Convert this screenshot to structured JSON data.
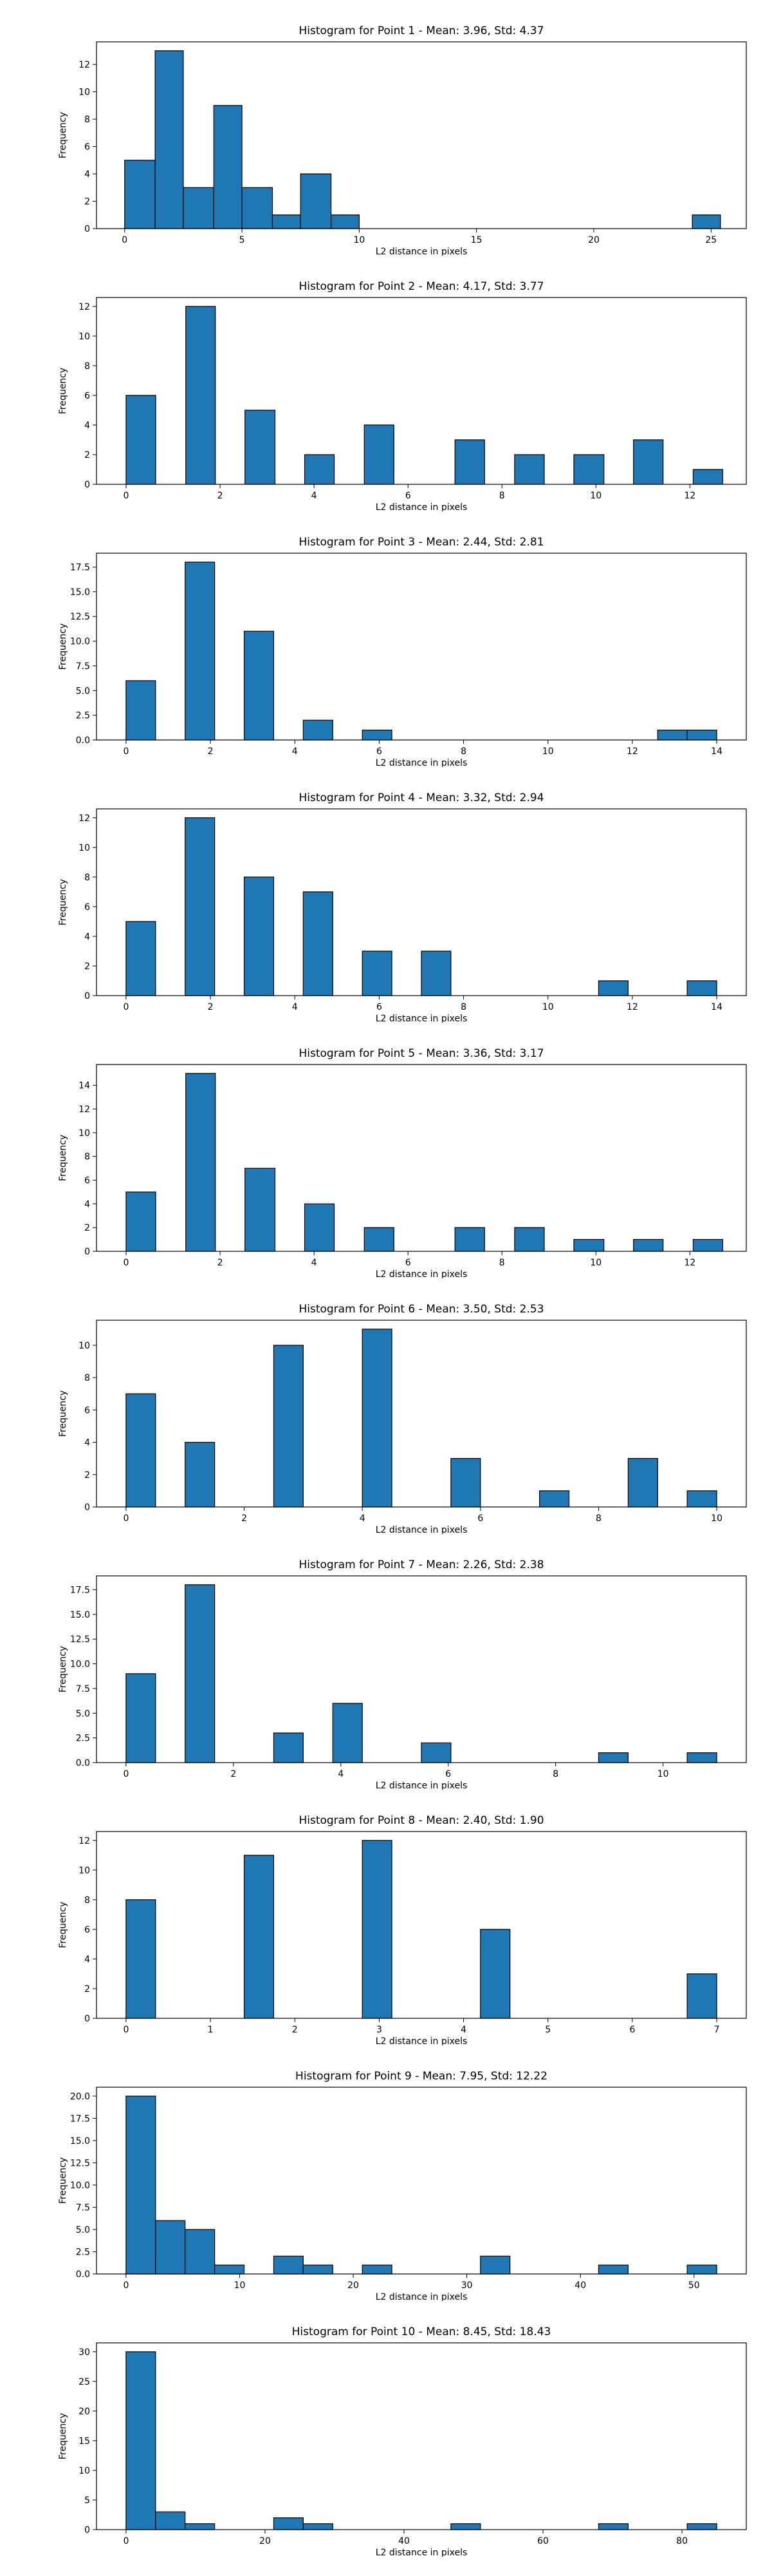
{
  "chart_data": [
    {
      "type": "bar",
      "title": "Histogram for Point 1 - Mean: 3.96, Std: 4.37",
      "xlabel": "L2 distance in pixels",
      "ylabel": "Frequency",
      "xlim": [
        -1.2,
        26.5
      ],
      "ylim": [
        0,
        13.65
      ],
      "xticks": [
        0,
        5,
        10,
        15,
        20,
        25
      ],
      "xtick_labels": [
        "0",
        "5",
        "10",
        "15",
        "20",
        "25"
      ],
      "yticks": [
        0,
        2,
        4,
        6,
        8,
        10,
        12
      ],
      "ytick_labels": [
        "0",
        "2",
        "4",
        "6",
        "8",
        "10",
        "12"
      ],
      "bins": [
        {
          "x0": 0,
          "x1": 1.3,
          "value": 5
        },
        {
          "x0": 1.3,
          "x1": 2.5,
          "value": 13
        },
        {
          "x0": 2.5,
          "x1": 3.8,
          "value": 3
        },
        {
          "x0": 3.8,
          "x1": 5.0,
          "value": 9
        },
        {
          "x0": 5.0,
          "x1": 6.3,
          "value": 3
        },
        {
          "x0": 6.3,
          "x1": 7.5,
          "value": 1
        },
        {
          "x0": 7.5,
          "x1": 8.8,
          "value": 4
        },
        {
          "x0": 8.8,
          "x1": 10.0,
          "value": 1
        },
        {
          "x0": 24.2,
          "x1": 25.4,
          "value": 1
        }
      ]
    },
    {
      "type": "bar",
      "title": "Histogram for Point 2 - Mean: 4.17, Std: 3.77",
      "xlabel": "L2 distance in pixels",
      "ylabel": "Frequency",
      "xlim": [
        -0.63,
        13.2
      ],
      "ylim": [
        0,
        12.6
      ],
      "xticks": [
        0,
        2,
        4,
        6,
        8,
        10,
        12
      ],
      "xtick_labels": [
        "0",
        "2",
        "4",
        "6",
        "8",
        "10",
        "12"
      ],
      "yticks": [
        0,
        2,
        4,
        6,
        8,
        10,
        12
      ],
      "ytick_labels": [
        "0",
        "2",
        "4",
        "6",
        "8",
        "10",
        "12"
      ],
      "bins": [
        {
          "x0": 0,
          "x1": 0.63,
          "value": 6
        },
        {
          "x0": 1.27,
          "x1": 1.9,
          "value": 12
        },
        {
          "x0": 2.53,
          "x1": 3.17,
          "value": 5
        },
        {
          "x0": 3.8,
          "x1": 4.43,
          "value": 2
        },
        {
          "x0": 5.07,
          "x1": 5.7,
          "value": 4
        },
        {
          "x0": 7.0,
          "x1": 7.63,
          "value": 3
        },
        {
          "x0": 8.27,
          "x1": 8.9,
          "value": 2
        },
        {
          "x0": 9.53,
          "x1": 10.17,
          "value": 2
        },
        {
          "x0": 10.8,
          "x1": 11.43,
          "value": 3
        },
        {
          "x0": 12.07,
          "x1": 12.7,
          "value": 1
        }
      ]
    },
    {
      "type": "bar",
      "title": "Histogram for Point 3 - Mean: 2.44, Std: 2.81",
      "xlabel": "L2 distance in pixels",
      "ylabel": "Frequency",
      "xlim": [
        -0.7,
        14.7
      ],
      "ylim": [
        0,
        18.9
      ],
      "xticks": [
        0,
        2,
        4,
        6,
        8,
        10,
        12,
        14
      ],
      "xtick_labels": [
        "0",
        "2",
        "4",
        "6",
        "8",
        "10",
        "12",
        "14"
      ],
      "yticks": [
        0,
        2.5,
        5,
        7.5,
        10,
        12.5,
        15,
        17.5
      ],
      "ytick_labels": [
        "0.0",
        "2.5",
        "5.0",
        "7.5",
        "10.0",
        "12.5",
        "15.0",
        "17.5"
      ],
      "bins": [
        {
          "x0": 0,
          "x1": 0.7,
          "value": 6
        },
        {
          "x0": 1.4,
          "x1": 2.1,
          "value": 18
        },
        {
          "x0": 2.8,
          "x1": 3.5,
          "value": 11
        },
        {
          "x0": 4.2,
          "x1": 4.9,
          "value": 2
        },
        {
          "x0": 5.6,
          "x1": 6.3,
          "value": 1
        },
        {
          "x0": 12.6,
          "x1": 13.3,
          "value": 1
        },
        {
          "x0": 13.3,
          "x1": 14.0,
          "value": 1
        }
      ]
    },
    {
      "type": "bar",
      "title": "Histogram for Point 4 - Mean: 3.32, Std: 2.94",
      "xlabel": "L2 distance in pixels",
      "ylabel": "Frequency",
      "xlim": [
        -0.7,
        14.7
      ],
      "ylim": [
        0,
        12.6
      ],
      "xticks": [
        0,
        2,
        4,
        6,
        8,
        10,
        12,
        14
      ],
      "xtick_labels": [
        "0",
        "2",
        "4",
        "6",
        "8",
        "10",
        "12",
        "14"
      ],
      "yticks": [
        0,
        2,
        4,
        6,
        8,
        10,
        12
      ],
      "ytick_labels": [
        "0",
        "2",
        "4",
        "6",
        "8",
        "10",
        "12"
      ],
      "bins": [
        {
          "x0": 0,
          "x1": 0.7,
          "value": 5
        },
        {
          "x0": 1.4,
          "x1": 2.1,
          "value": 12
        },
        {
          "x0": 2.8,
          "x1": 3.5,
          "value": 8
        },
        {
          "x0": 4.2,
          "x1": 4.9,
          "value": 7
        },
        {
          "x0": 5.6,
          "x1": 6.3,
          "value": 3
        },
        {
          "x0": 7.0,
          "x1": 7.7,
          "value": 3
        },
        {
          "x0": 11.2,
          "x1": 11.9,
          "value": 1
        },
        {
          "x0": 13.3,
          "x1": 14.0,
          "value": 1
        }
      ]
    },
    {
      "type": "bar",
      "title": "Histogram for Point 5 - Mean: 3.36, Std: 3.17",
      "xlabel": "L2 distance in pixels",
      "ylabel": "Frequency",
      "xlim": [
        -0.63,
        13.2
      ],
      "ylim": [
        0,
        15.75
      ],
      "xticks": [
        0,
        2,
        4,
        6,
        8,
        10,
        12
      ],
      "xtick_labels": [
        "0",
        "2",
        "4",
        "6",
        "8",
        "10",
        "12"
      ],
      "yticks": [
        0,
        2,
        4,
        6,
        8,
        10,
        12,
        14
      ],
      "ytick_labels": [
        "0",
        "2",
        "4",
        "6",
        "8",
        "10",
        "12",
        "14"
      ],
      "bins": [
        {
          "x0": 0,
          "x1": 0.63,
          "value": 5
        },
        {
          "x0": 1.27,
          "x1": 1.9,
          "value": 15
        },
        {
          "x0": 2.53,
          "x1": 3.17,
          "value": 7
        },
        {
          "x0": 3.8,
          "x1": 4.43,
          "value": 4
        },
        {
          "x0": 5.07,
          "x1": 5.7,
          "value": 2
        },
        {
          "x0": 7.0,
          "x1": 7.63,
          "value": 2
        },
        {
          "x0": 8.27,
          "x1": 8.9,
          "value": 2
        },
        {
          "x0": 9.53,
          "x1": 10.17,
          "value": 1
        },
        {
          "x0": 10.8,
          "x1": 11.43,
          "value": 1
        },
        {
          "x0": 12.07,
          "x1": 12.7,
          "value": 1
        }
      ]
    },
    {
      "type": "bar",
      "title": "Histogram for Point 6 - Mean: 3.50, Std: 2.53",
      "xlabel": "L2 distance in pixels",
      "ylabel": "Frequency",
      "xlim": [
        -0.5,
        10.5
      ],
      "ylim": [
        0,
        11.55
      ],
      "xticks": [
        0,
        2,
        4,
        6,
        8,
        10
      ],
      "xtick_labels": [
        "0",
        "2",
        "4",
        "6",
        "8",
        "10"
      ],
      "yticks": [
        0,
        2,
        4,
        6,
        8,
        10
      ],
      "ytick_labels": [
        "0",
        "2",
        "4",
        "6",
        "8",
        "10"
      ],
      "bins": [
        {
          "x0": 0,
          "x1": 0.5,
          "value": 7
        },
        {
          "x0": 1.0,
          "x1": 1.5,
          "value": 4
        },
        {
          "x0": 2.5,
          "x1": 3.0,
          "value": 10
        },
        {
          "x0": 4.0,
          "x1": 4.5,
          "value": 11
        },
        {
          "x0": 5.5,
          "x1": 6.0,
          "value": 3
        },
        {
          "x0": 7.0,
          "x1": 7.5,
          "value": 1
        },
        {
          "x0": 8.5,
          "x1": 9.0,
          "value": 3
        },
        {
          "x0": 9.5,
          "x1": 10.0,
          "value": 1
        }
      ]
    },
    {
      "type": "bar",
      "title": "Histogram for Point 7 - Mean: 2.26, Std: 2.38",
      "xlabel": "L2 distance in pixels",
      "ylabel": "Frequency",
      "xlim": [
        -0.55,
        11.55
      ],
      "ylim": [
        0,
        18.9
      ],
      "xticks": [
        0,
        2,
        4,
        6,
        8,
        10
      ],
      "xtick_labels": [
        "0",
        "2",
        "4",
        "6",
        "8",
        "10"
      ],
      "yticks": [
        0,
        2.5,
        5,
        7.5,
        10,
        12.5,
        15,
        17.5
      ],
      "ytick_labels": [
        "0.0",
        "2.5",
        "5.0",
        "7.5",
        "10.0",
        "12.5",
        "15.0",
        "17.5"
      ],
      "bins": [
        {
          "x0": 0,
          "x1": 0.55,
          "value": 9
        },
        {
          "x0": 1.1,
          "x1": 1.65,
          "value": 18
        },
        {
          "x0": 2.75,
          "x1": 3.3,
          "value": 3
        },
        {
          "x0": 3.85,
          "x1": 4.4,
          "value": 6
        },
        {
          "x0": 5.5,
          "x1": 6.05,
          "value": 2
        },
        {
          "x0": 8.8,
          "x1": 9.35,
          "value": 1
        },
        {
          "x0": 10.45,
          "x1": 11.0,
          "value": 1
        }
      ]
    },
    {
      "type": "bar",
      "title": "Histogram for Point 8 - Mean: 2.40, Std: 1.90",
      "xlabel": "L2 distance in pixels",
      "ylabel": "Frequency",
      "xlim": [
        -0.35,
        7.35
      ],
      "ylim": [
        0,
        12.6
      ],
      "xticks": [
        0,
        1,
        2,
        3,
        4,
        5,
        6,
        7
      ],
      "xtick_labels": [
        "0",
        "1",
        "2",
        "3",
        "4",
        "5",
        "6",
        "7"
      ],
      "yticks": [
        0,
        2,
        4,
        6,
        8,
        10,
        12
      ],
      "ytick_labels": [
        "0",
        "2",
        "4",
        "6",
        "8",
        "10",
        "12"
      ],
      "bins": [
        {
          "x0": 0,
          "x1": 0.35,
          "value": 8
        },
        {
          "x0": 1.4,
          "x1": 1.75,
          "value": 11
        },
        {
          "x0": 2.8,
          "x1": 3.15,
          "value": 12
        },
        {
          "x0": 4.2,
          "x1": 4.55,
          "value": 6
        },
        {
          "x0": 6.65,
          "x1": 7.0,
          "value": 3
        }
      ]
    },
    {
      "type": "bar",
      "title": "Histogram for Point 9 - Mean: 7.95, Std: 12.22",
      "xlabel": "L2 distance in pixels",
      "ylabel": "Frequency",
      "xlim": [
        -2.6,
        54.6
      ],
      "ylim": [
        0,
        21
      ],
      "xticks": [
        0,
        10,
        20,
        30,
        40,
        50
      ],
      "xtick_labels": [
        "0",
        "10",
        "20",
        "30",
        "40",
        "50"
      ],
      "yticks": [
        0,
        2.5,
        5,
        7.5,
        10,
        12.5,
        15,
        17.5,
        20
      ],
      "ytick_labels": [
        "0.0",
        "2.5",
        "5.0",
        "7.5",
        "10.0",
        "12.5",
        "15.0",
        "17.5",
        "20.0"
      ],
      "bins": [
        {
          "x0": 0,
          "x1": 2.6,
          "value": 20
        },
        {
          "x0": 2.6,
          "x1": 5.2,
          "value": 6
        },
        {
          "x0": 5.2,
          "x1": 7.8,
          "value": 5
        },
        {
          "x0": 7.8,
          "x1": 10.4,
          "value": 1
        },
        {
          "x0": 13.0,
          "x1": 15.6,
          "value": 2
        },
        {
          "x0": 15.6,
          "x1": 18.2,
          "value": 1
        },
        {
          "x0": 20.8,
          "x1": 23.4,
          "value": 1
        },
        {
          "x0": 31.2,
          "x1": 33.8,
          "value": 2
        },
        {
          "x0": 41.6,
          "x1": 44.2,
          "value": 1
        },
        {
          "x0": 49.4,
          "x1": 52.0,
          "value": 1
        }
      ]
    },
    {
      "type": "bar",
      "title": "Histogram for Point 10 - Mean: 8.45, Std: 18.43",
      "xlabel": "L2 distance in pixels",
      "ylabel": "Frequency",
      "xlim": [
        -4.25,
        89.25
      ],
      "ylim": [
        0,
        31.5
      ],
      "xticks": [
        0,
        20,
        40,
        60,
        80
      ],
      "xtick_labels": [
        "0",
        "20",
        "40",
        "60",
        "80"
      ],
      "yticks": [
        0,
        5,
        10,
        15,
        20,
        25,
        30
      ],
      "ytick_labels": [
        "0",
        "5",
        "10",
        "15",
        "20",
        "25",
        "30"
      ],
      "bins": [
        {
          "x0": 0,
          "x1": 4.25,
          "value": 30
        },
        {
          "x0": 4.25,
          "x1": 8.5,
          "value": 3
        },
        {
          "x0": 8.5,
          "x1": 12.75,
          "value": 1
        },
        {
          "x0": 21.25,
          "x1": 25.5,
          "value": 2
        },
        {
          "x0": 25.5,
          "x1": 29.75,
          "value": 1
        },
        {
          "x0": 46.75,
          "x1": 51.0,
          "value": 1
        },
        {
          "x0": 68.0,
          "x1": 72.25,
          "value": 1
        },
        {
          "x0": 80.75,
          "x1": 85.0,
          "value": 1
        }
      ]
    }
  ],
  "colors": {
    "bar_fill": "#1f77b4",
    "bar_edge": "#000000",
    "axis": "#000000",
    "background": "#ffffff"
  }
}
